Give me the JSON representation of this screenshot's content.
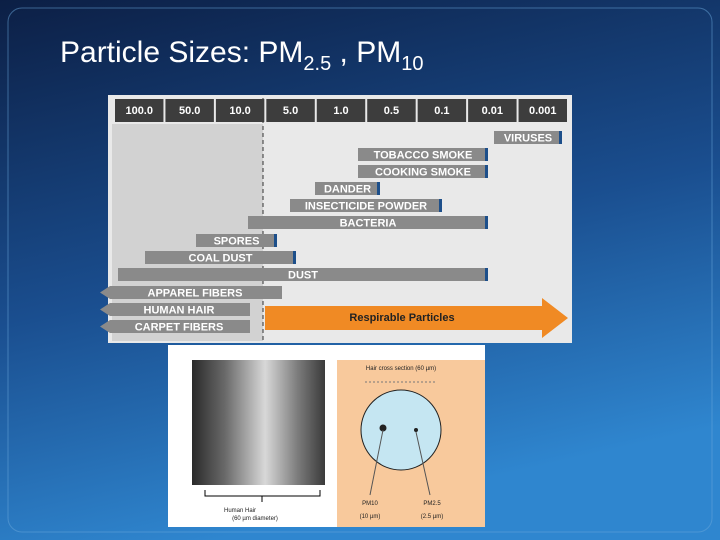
{
  "title": {
    "main": "Particle Sizes:  PM",
    "sub1": "2.5",
    "sep": " ,  PM",
    "sub2": "10"
  },
  "diagram": {
    "scale": [
      "100.0",
      "50.0",
      "10.0",
      "5.0",
      "1.0",
      "0.5",
      "0.1",
      "0.01",
      "0.001"
    ],
    "bars": [
      "VIRUSES",
      "TOBACCO SMOKE",
      "COOKING SMOKE",
      "DANDER",
      "INSECTICIDE POWDER",
      "BACTERIA",
      "SPORES",
      "COAL DUST",
      "DUST",
      "APPAREL FIBERS",
      "HUMAN HAIR",
      "CARPET FIBERS"
    ],
    "respirable": "Respirable Particles"
  },
  "figure": {
    "hair_label": "Human Hair",
    "hair_note": "(60 µm  diameter)",
    "section_title": "Hair cross section (60 µm)",
    "pm10": "PM10",
    "pm10_size": "(10 µm)",
    "pm25": "PM2.5",
    "pm25_size": "(2.5 µm)"
  }
}
